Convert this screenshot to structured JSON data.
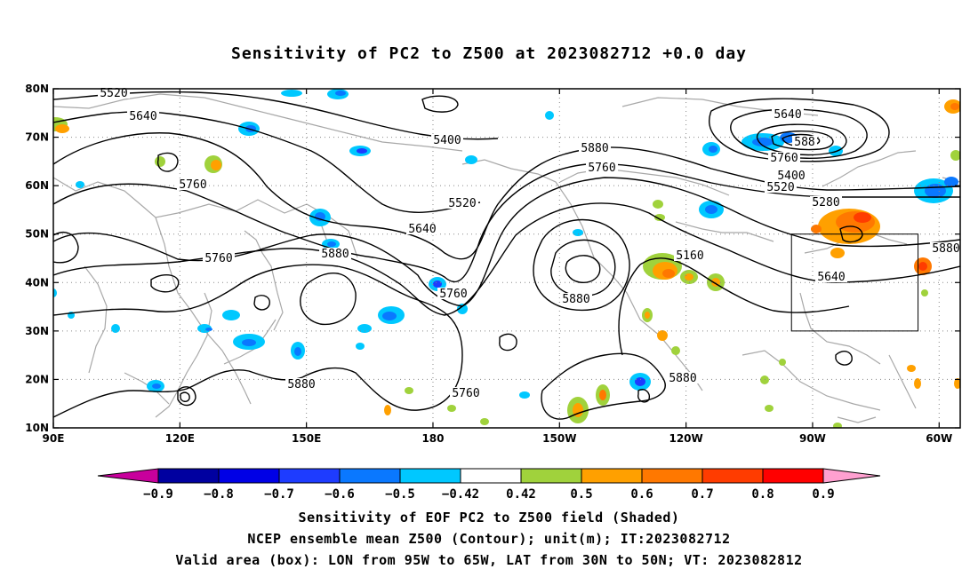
{
  "title": "Sensitivity of PC2 to Z500 at 2023082712 +0.0 day",
  "map": {
    "lon_labels": [
      "90E",
      "120E",
      "150E",
      "180",
      "150W",
      "120W",
      "90W",
      "60W"
    ],
    "lat_labels": [
      "80N",
      "70N",
      "60N",
      "50N",
      "40N",
      "30N",
      "20N",
      "10N"
    ],
    "lon_range": [
      90,
      305
    ],
    "lat_range": [
      10,
      80
    ],
    "grid": "dotted",
    "valid_box": {
      "lon": [
        265,
        295
      ],
      "lat": [
        30,
        50
      ]
    },
    "contour_labels": [
      "5520",
      "5640",
      "5760",
      "5400",
      "5520",
      "5640",
      "5760",
      "5880",
      "5760",
      "5880",
      "5880",
      "5760",
      "5640",
      "5760",
      "5400",
      "5520",
      "5280",
      "5160",
      "5640",
      "5880",
      "5760",
      "5880",
      "5880",
      "588"
    ]
  },
  "colorbar": {
    "labels": [
      "-0.9",
      "-0.8",
      "-0.7",
      "-0.6",
      "-0.5",
      "-0.42",
      "0.42",
      "0.5",
      "0.6",
      "0.7",
      "0.8",
      "0.9"
    ],
    "colors": [
      "#0000a0",
      "#0000e6",
      "#1e3cff",
      "#0a78ff",
      "#00c8ff",
      "#ffffff",
      "#a0d23c",
      "#ffa000",
      "#ff7800",
      "#ff3c00",
      "#ff0000"
    ],
    "low_extend_color": "#c8009c",
    "high_extend_color": "#ffa0d0"
  },
  "captions": {
    "line1": "Sensitivity of EOF PC2 to Z500 field (Shaded)",
    "line2": "NCEP ensemble mean Z500 (Contour); unit(m); IT:2023082712",
    "line3": "Valid area (box): LON from 95W to 65W, LAT from 30N to 50N; VT: 2023082812"
  }
}
